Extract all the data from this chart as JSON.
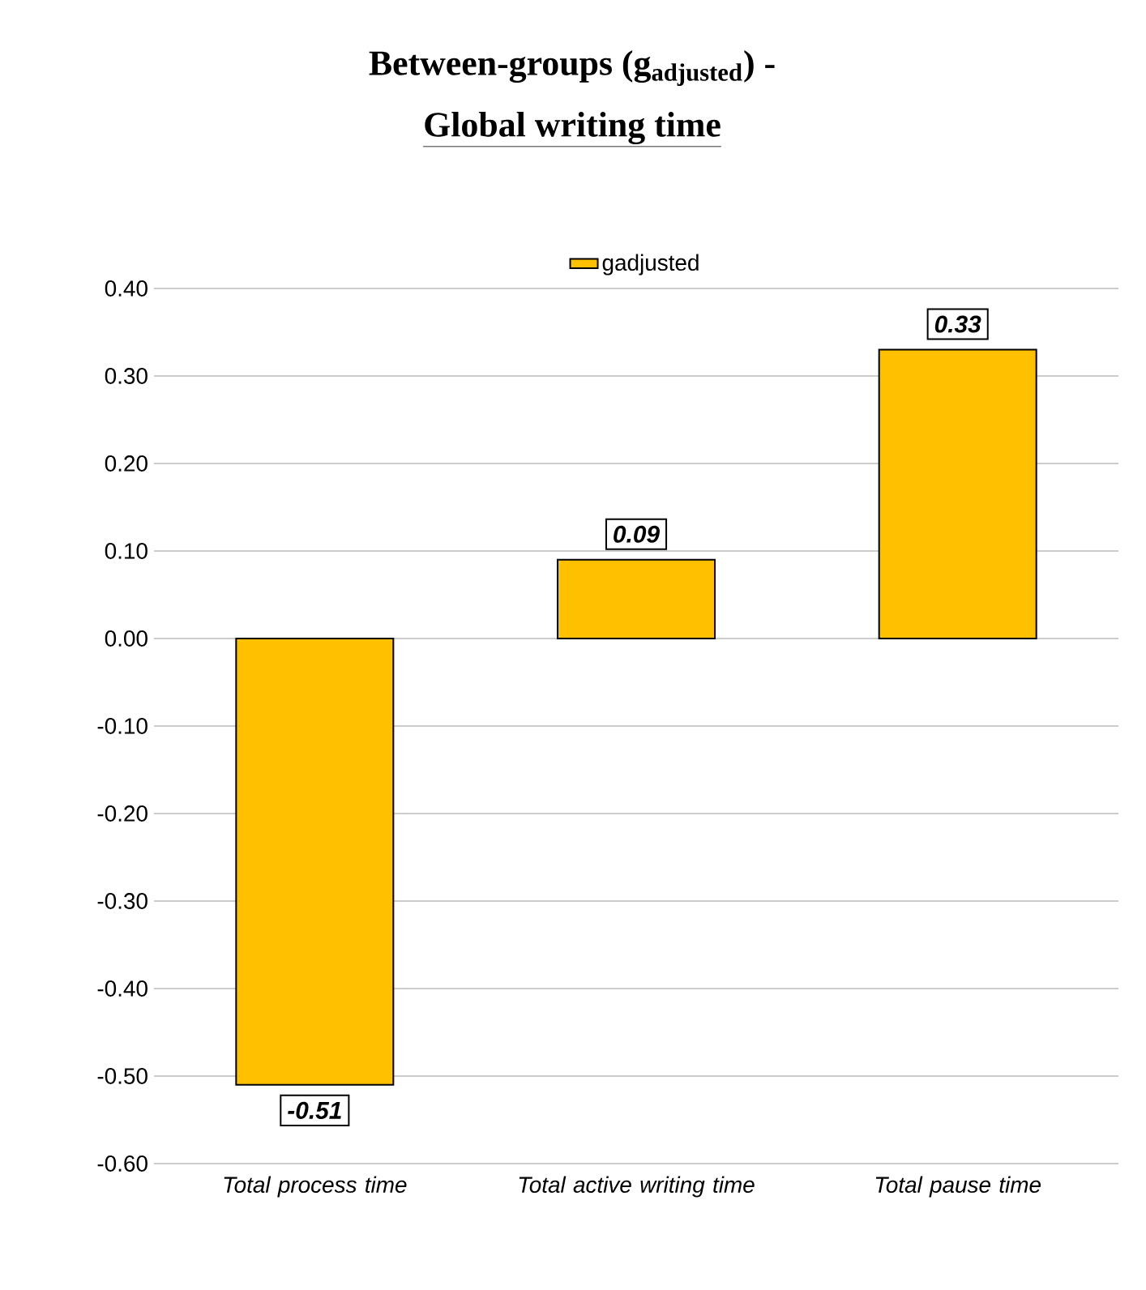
{
  "chart_data": {
    "type": "bar",
    "title": "Between-groups (g$_{adjusted}$) -",
    "subtitle": "Global writing time",
    "categories": [
      "Total process time",
      "Total active writing time",
      "Total pause time"
    ],
    "series": [
      {
        "name": "gadjusted",
        "color": "#ffc000",
        "values": [
          -0.51,
          0.09,
          0.33
        ]
      }
    ],
    "value_labels": [
      "-0.51",
      "0.09",
      "0.33"
    ],
    "ylim": [
      -0.6,
      0.4
    ],
    "yticks": [
      {
        "value": -0.6,
        "label": "-0.60"
      },
      {
        "value": -0.5,
        "label": "-0.50"
      },
      {
        "value": -0.4,
        "label": "-0.40"
      },
      {
        "value": -0.3,
        "label": "-0.30"
      },
      {
        "value": -0.2,
        "label": "-0.20"
      },
      {
        "value": -0.1,
        "label": "-0.10"
      },
      {
        "value": 0,
        "label": "0.00"
      },
      {
        "value": 0.1,
        "label": "0.10"
      },
      {
        "value": 0.2,
        "label": "0.20"
      },
      {
        "value": 0.3,
        "label": "0.30"
      },
      {
        "value": 0.4,
        "label": "0.40"
      }
    ],
    "grid": "y",
    "legend": "top"
  }
}
